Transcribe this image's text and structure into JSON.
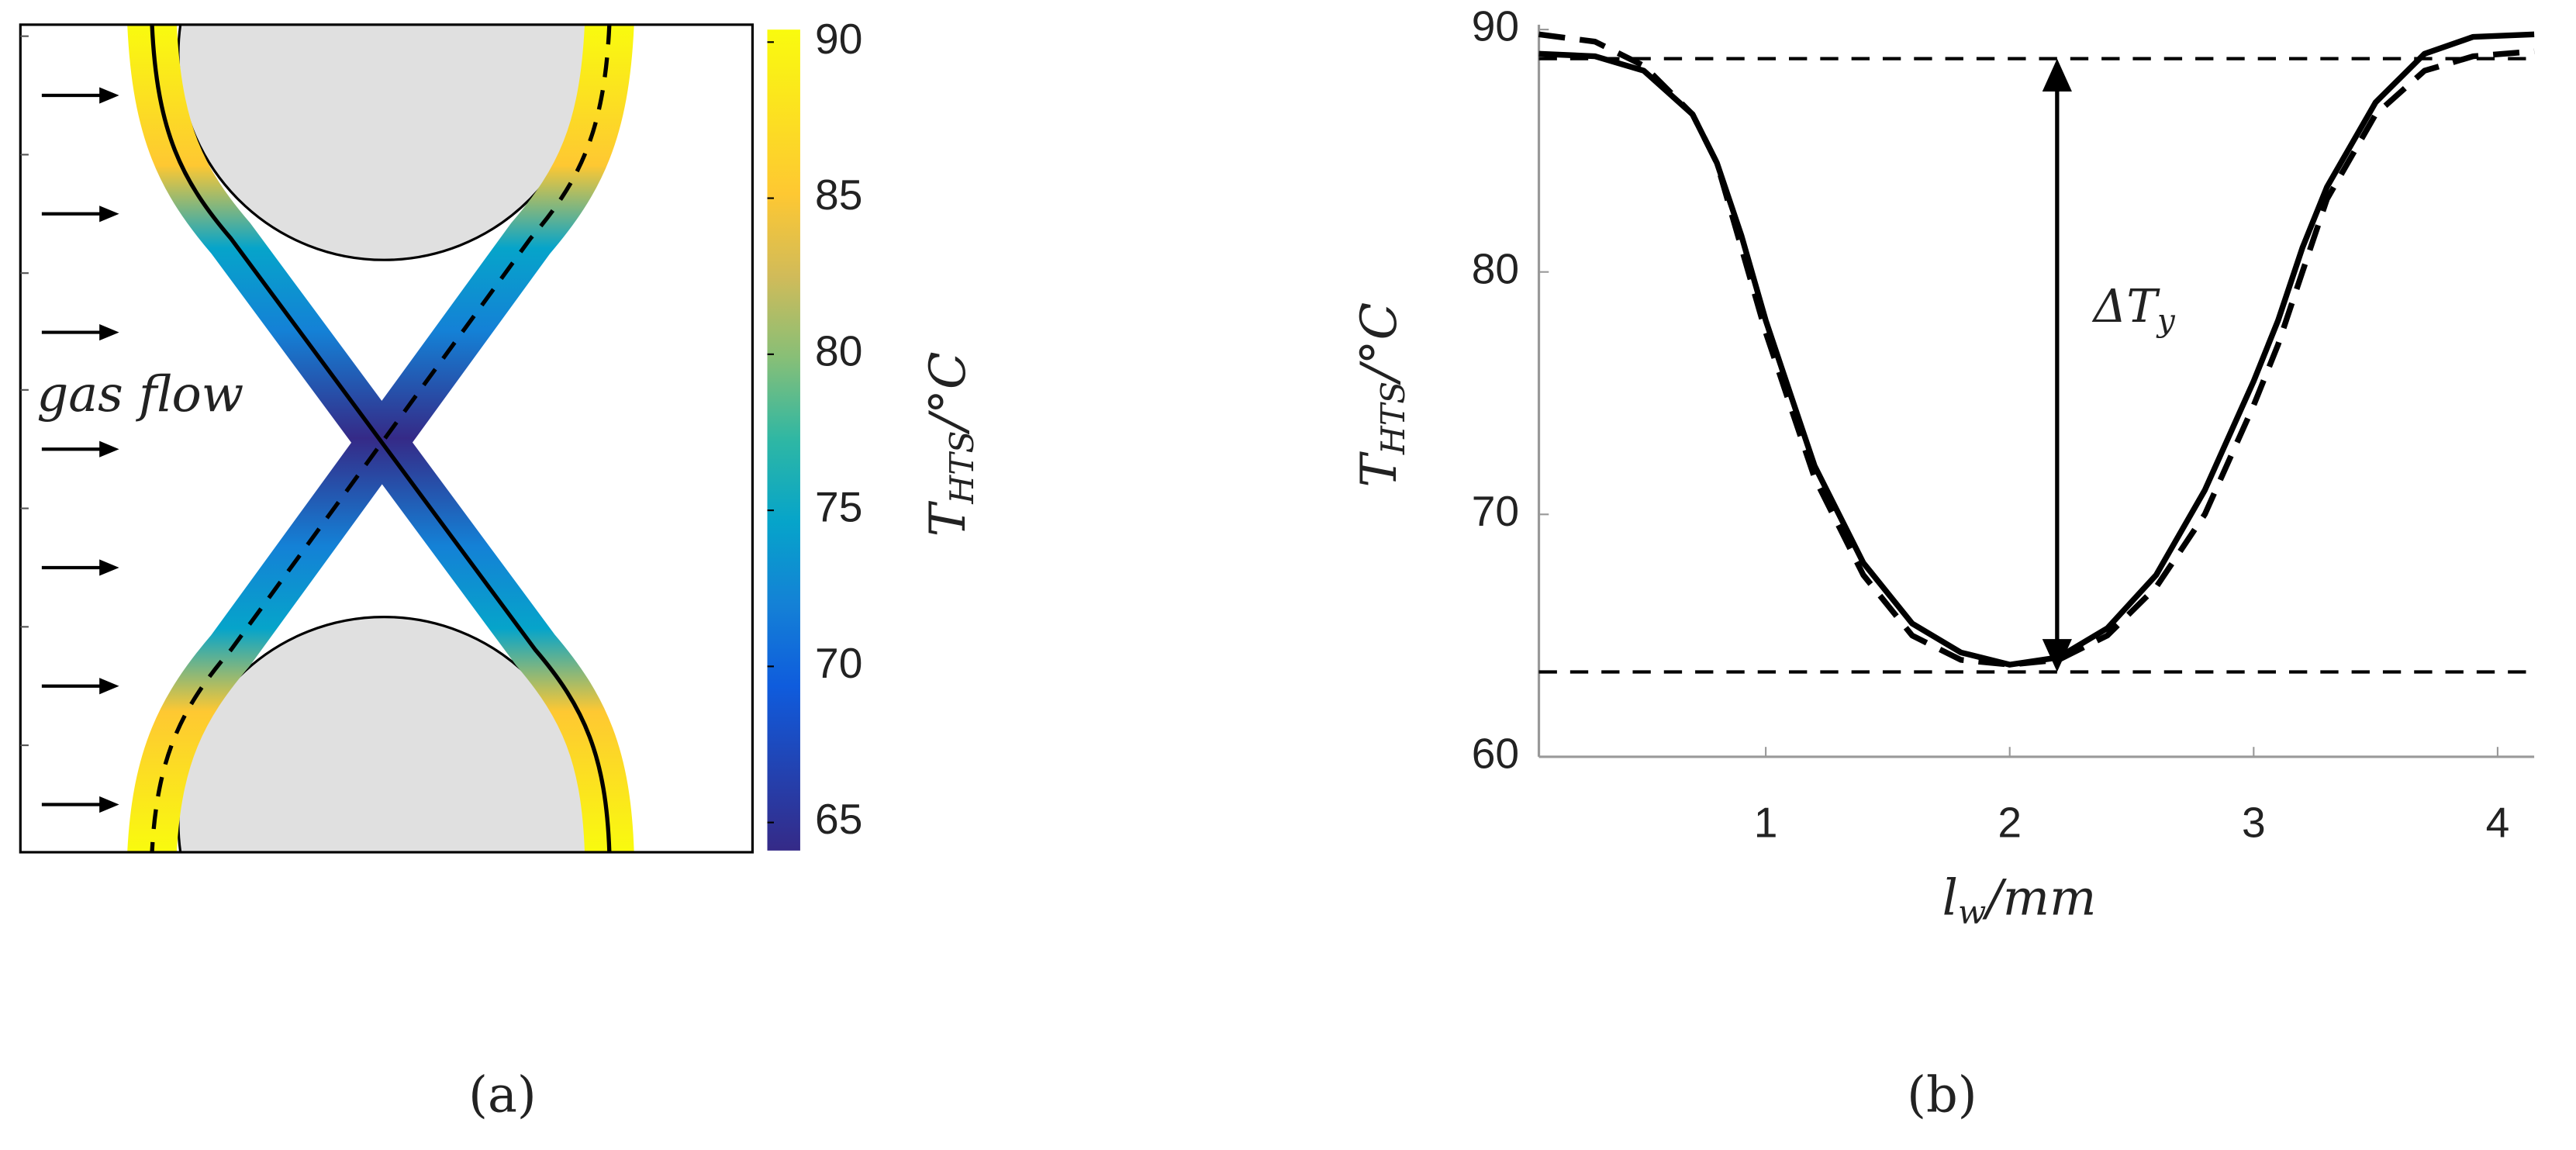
{
  "chart_data": [
    {
      "type": "diagram",
      "annotation": "gas flow",
      "caption": "(a)",
      "colorbar": {
        "label": {
          "main": "T",
          "sub": "HTS",
          "rest": "/°C"
        },
        "clim": [
          64.1,
          90.4
        ],
        "ticks": [
          65,
          70,
          75,
          80,
          85,
          90
        ],
        "colormap": "parula"
      }
    },
    {
      "type": "line",
      "caption": "(b)",
      "ylabel": {
        "main": "T",
        "sub": "HTS",
        "rest": "/°C"
      },
      "xlabel": {
        "main": "l",
        "sub": "w",
        "rest": "/mm"
      },
      "annotation": {
        "main": "ΔT",
        "sub": "y"
      },
      "xlim": [
        0.07,
        4.15
      ],
      "ylim": [
        60,
        90.2
      ],
      "xticks": [
        1,
        2,
        3,
        4
      ],
      "yticks": [
        60,
        70,
        80,
        90
      ],
      "reference_lines": [
        88.8,
        63.5
      ],
      "x": [
        0.07,
        0.3,
        0.5,
        0.7,
        0.8,
        0.9,
        1.0,
        1.1,
        1.2,
        1.4,
        1.6,
        1.8,
        2.0,
        2.2,
        2.4,
        2.6,
        2.8,
        3.0,
        3.1,
        3.2,
        3.3,
        3.5,
        3.7,
        3.9,
        4.15
      ],
      "series": [
        {
          "color": "#000000",
          "style": "solid",
          "values": [
            89,
            88.9,
            88.3,
            86.5,
            84.5,
            81.5,
            78,
            75,
            72,
            68,
            65.5,
            64.3,
            63.8,
            64.1,
            65.3,
            67.5,
            71,
            75.5,
            78,
            81,
            83.5,
            87,
            89,
            89.7,
            89.8
          ]
        },
        {
          "color": "#000000",
          "style": "dashed",
          "values": [
            89.8,
            89.5,
            88.5,
            86.5,
            84.5,
            81,
            77.5,
            74.5,
            71.5,
            67.5,
            65,
            64,
            63.8,
            64,
            65,
            67,
            70,
            74.5,
            77,
            80,
            83,
            86.5,
            88.3,
            88.9,
            89.1
          ]
        }
      ]
    }
  ]
}
